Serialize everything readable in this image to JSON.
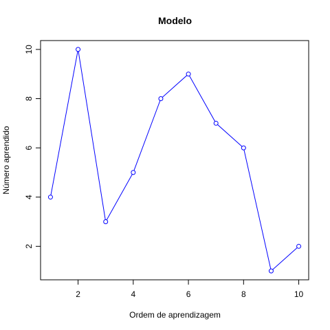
{
  "chart_data": {
    "type": "line",
    "title": "Modelo",
    "xlabel": "Ordem de aprendizagem",
    "ylabel": "Número aprendido",
    "x": [
      1,
      2,
      3,
      4,
      5,
      6,
      7,
      8,
      9,
      10
    ],
    "y": [
      4,
      10,
      3,
      5,
      8,
      9,
      7,
      6,
      1,
      2
    ],
    "xlim": [
      0.64,
      10.36
    ],
    "ylim": [
      0.64,
      10.36
    ],
    "xticks": [
      2,
      4,
      6,
      8,
      10
    ],
    "yticks": [
      2,
      4,
      6,
      8,
      10
    ],
    "grid": false,
    "line_color": "#0000FF",
    "marker": "open-circle"
  }
}
